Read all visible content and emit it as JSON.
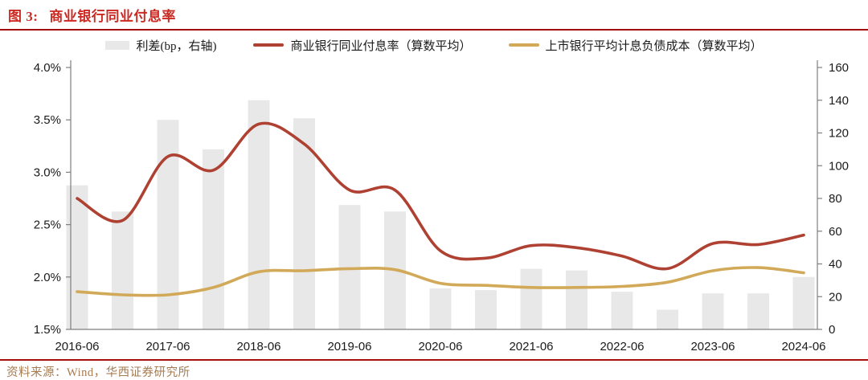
{
  "title": {
    "prefix": "图 3:",
    "text": "商业银行同业付息率"
  },
  "legend": [
    {
      "label": "利差(bp，右轴)",
      "swatch": "bar-swatch",
      "color": "#E8E8E8"
    },
    {
      "label": "商业银行同业付息率（算数平均）",
      "swatch": "line-swatch",
      "color": "#AE4132"
    },
    {
      "label": "上市银行平均计息负债成本（算数平均）",
      "swatch": "line-swatch",
      "color": "#D2A958"
    }
  ],
  "footer": {
    "source": "资料来源：Wind，华西证券研究所"
  },
  "colors": {
    "title_red": "#CB2A22",
    "rule_red": "#A40E0E",
    "source_brown": "#A67C52",
    "bar_gray": "#E8E8E8",
    "line_rate_red": "#AE4132",
    "line_cost_gold": "#D2A958",
    "axis_gray": "#7F7F7F",
    "tick_text": "#1a1a1a"
  },
  "chart_data": {
    "type": "combo-bar-line",
    "title": "商业银行同业付息率",
    "categories": [
      "2016-06",
      "2016-12",
      "2017-06",
      "2017-12",
      "2018-06",
      "2018-12",
      "2019-06",
      "2019-12",
      "2020-06",
      "2020-12",
      "2021-06",
      "2021-12",
      "2022-06",
      "2022-12",
      "2023-06",
      "2023-12",
      "2024-06"
    ],
    "x_tick_labels": [
      "2016-06",
      "2017-06",
      "2018-06",
      "2019-06",
      "2020-06",
      "2021-06",
      "2022-06",
      "2023-06",
      "2024-06"
    ],
    "x_tick_indices": [
      0,
      2,
      4,
      6,
      8,
      10,
      12,
      14,
      16
    ],
    "series": [
      {
        "name": "利差(bp，右轴)",
        "type": "bar",
        "axis": "right",
        "values": [
          88,
          72,
          128,
          110,
          140,
          129,
          76,
          72,
          25,
          24,
          37,
          36,
          23,
          12,
          22,
          22,
          32
        ]
      },
      {
        "name": "商业银行同业付息率（算数平均）",
        "type": "line",
        "axis": "left",
        "values": [
          2.75,
          2.54,
          3.15,
          3.02,
          3.46,
          3.27,
          2.83,
          2.83,
          2.25,
          2.18,
          2.3,
          2.28,
          2.2,
          2.08,
          2.32,
          2.31,
          2.4
        ]
      },
      {
        "name": "上市银行平均计息负债成本（算数平均）",
        "type": "line",
        "axis": "left",
        "values": [
          1.86,
          1.83,
          1.83,
          1.9,
          2.05,
          2.06,
          2.08,
          2.07,
          1.94,
          1.92,
          1.9,
          1.9,
          1.91,
          1.95,
          2.06,
          2.09,
          2.04
        ]
      }
    ],
    "left_axis": {
      "min": 1.5,
      "max": 4.0,
      "tick_labels": [
        "4.0%",
        "3.5%",
        "3.0%",
        "2.5%",
        "2.0%",
        "1.5%"
      ],
      "tick_values": [
        4.0,
        3.5,
        3.0,
        2.5,
        2.0,
        1.5
      ]
    },
    "right_axis": {
      "min": 0,
      "max": 160,
      "tick_labels": [
        "160",
        "140",
        "120",
        "100",
        "80",
        "60",
        "40",
        "20",
        "0"
      ],
      "tick_values": [
        160,
        140,
        120,
        100,
        80,
        60,
        40,
        20,
        0
      ]
    },
    "grid": false,
    "legend_position": "top"
  }
}
